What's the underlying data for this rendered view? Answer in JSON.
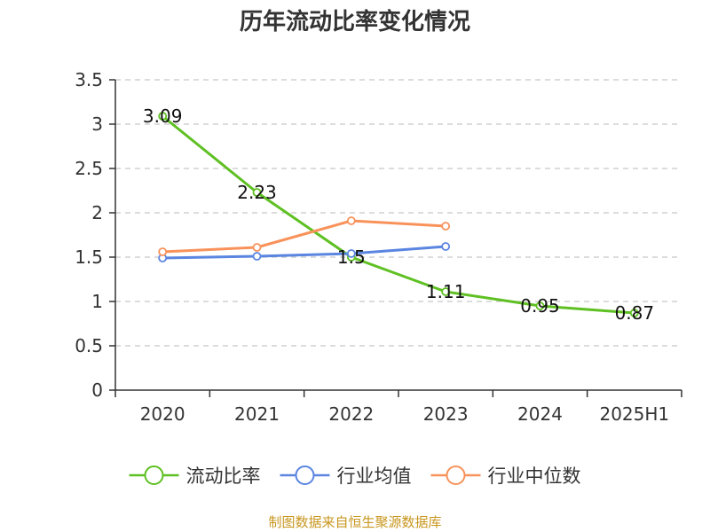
{
  "chart_data": {
    "type": "line",
    "title": "历年流动比率变化情况",
    "categories": [
      "2020",
      "2021",
      "2022",
      "2023",
      "2024",
      "2025H1"
    ],
    "ylim": [
      0,
      3.5
    ],
    "yticks": [
      0,
      0.5,
      1,
      1.5,
      2,
      2.5,
      3,
      3.5
    ],
    "ytick_labels": [
      "0",
      "0.5",
      "1",
      "1.5",
      "2",
      "2.5",
      "3",
      "3.5"
    ],
    "grid": true,
    "legend_position": "bottom",
    "series": [
      {
        "name": "流动比率",
        "color": "#5ec022",
        "values": [
          3.09,
          2.23,
          1.5,
          1.11,
          0.95,
          0.87
        ],
        "labels": [
          "3.09",
          "2.23",
          "1.5",
          "1.11",
          "0.95",
          "0.87"
        ]
      },
      {
        "name": "行业均值",
        "color": "#5a85e0",
        "values": [
          1.49,
          1.51,
          1.54,
          1.62,
          null,
          null
        ]
      },
      {
        "name": "行业中位数",
        "color": "#f8925a",
        "values": [
          1.56,
          1.61,
          1.91,
          1.85,
          null,
          null
        ]
      }
    ]
  },
  "source": "制图数据来自恒生聚源数据库"
}
